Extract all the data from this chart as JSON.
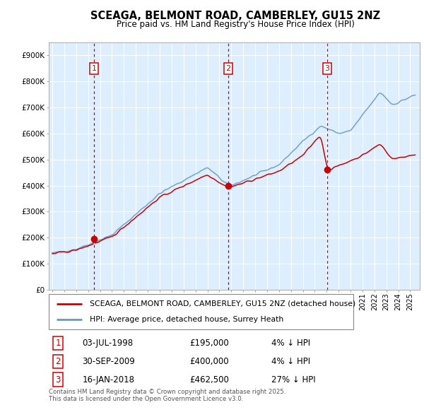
{
  "title": "SCEAGA, BELMONT ROAD, CAMBERLEY, GU15 2NZ",
  "subtitle": "Price paid vs. HM Land Registry's House Price Index (HPI)",
  "legend_line1": "SCEAGA, BELMONT ROAD, CAMBERLEY, GU15 2NZ (detached house)",
  "legend_line2": "HPI: Average price, detached house, Surrey Heath",
  "transactions": [
    {
      "num": 1,
      "date": "03-JUL-1998",
      "price": 195000,
      "pct": "4%",
      "dir": "↓"
    },
    {
      "num": 2,
      "date": "30-SEP-2009",
      "price": 400000,
      "pct": "4%",
      "dir": "↓"
    },
    {
      "num": 3,
      "date": "16-JAN-2018",
      "price": 462500,
      "pct": "27%",
      "dir": "↓"
    }
  ],
  "transaction_years": [
    1998.5,
    2009.75,
    2018.05
  ],
  "transaction_prices": [
    195000,
    400000,
    462500
  ],
  "footer": "Contains HM Land Registry data © Crown copyright and database right 2025.\nThis data is licensed under the Open Government Licence v3.0.",
  "red_color": "#cc0000",
  "blue_color": "#6699cc",
  "bg_color": "#ddeeff",
  "grid_color": "#ffffff",
  "ylim": [
    0,
    950000
  ],
  "yticks": [
    0,
    100000,
    200000,
    300000,
    400000,
    500000,
    600000,
    700000,
    800000,
    900000
  ],
  "ytick_labels": [
    "£0",
    "£100K",
    "£200K",
    "£300K",
    "£400K",
    "£500K",
    "£600K",
    "£700K",
    "£800K",
    "£900K"
  ],
  "xlim_start": 1994.7,
  "xlim_end": 2025.8
}
